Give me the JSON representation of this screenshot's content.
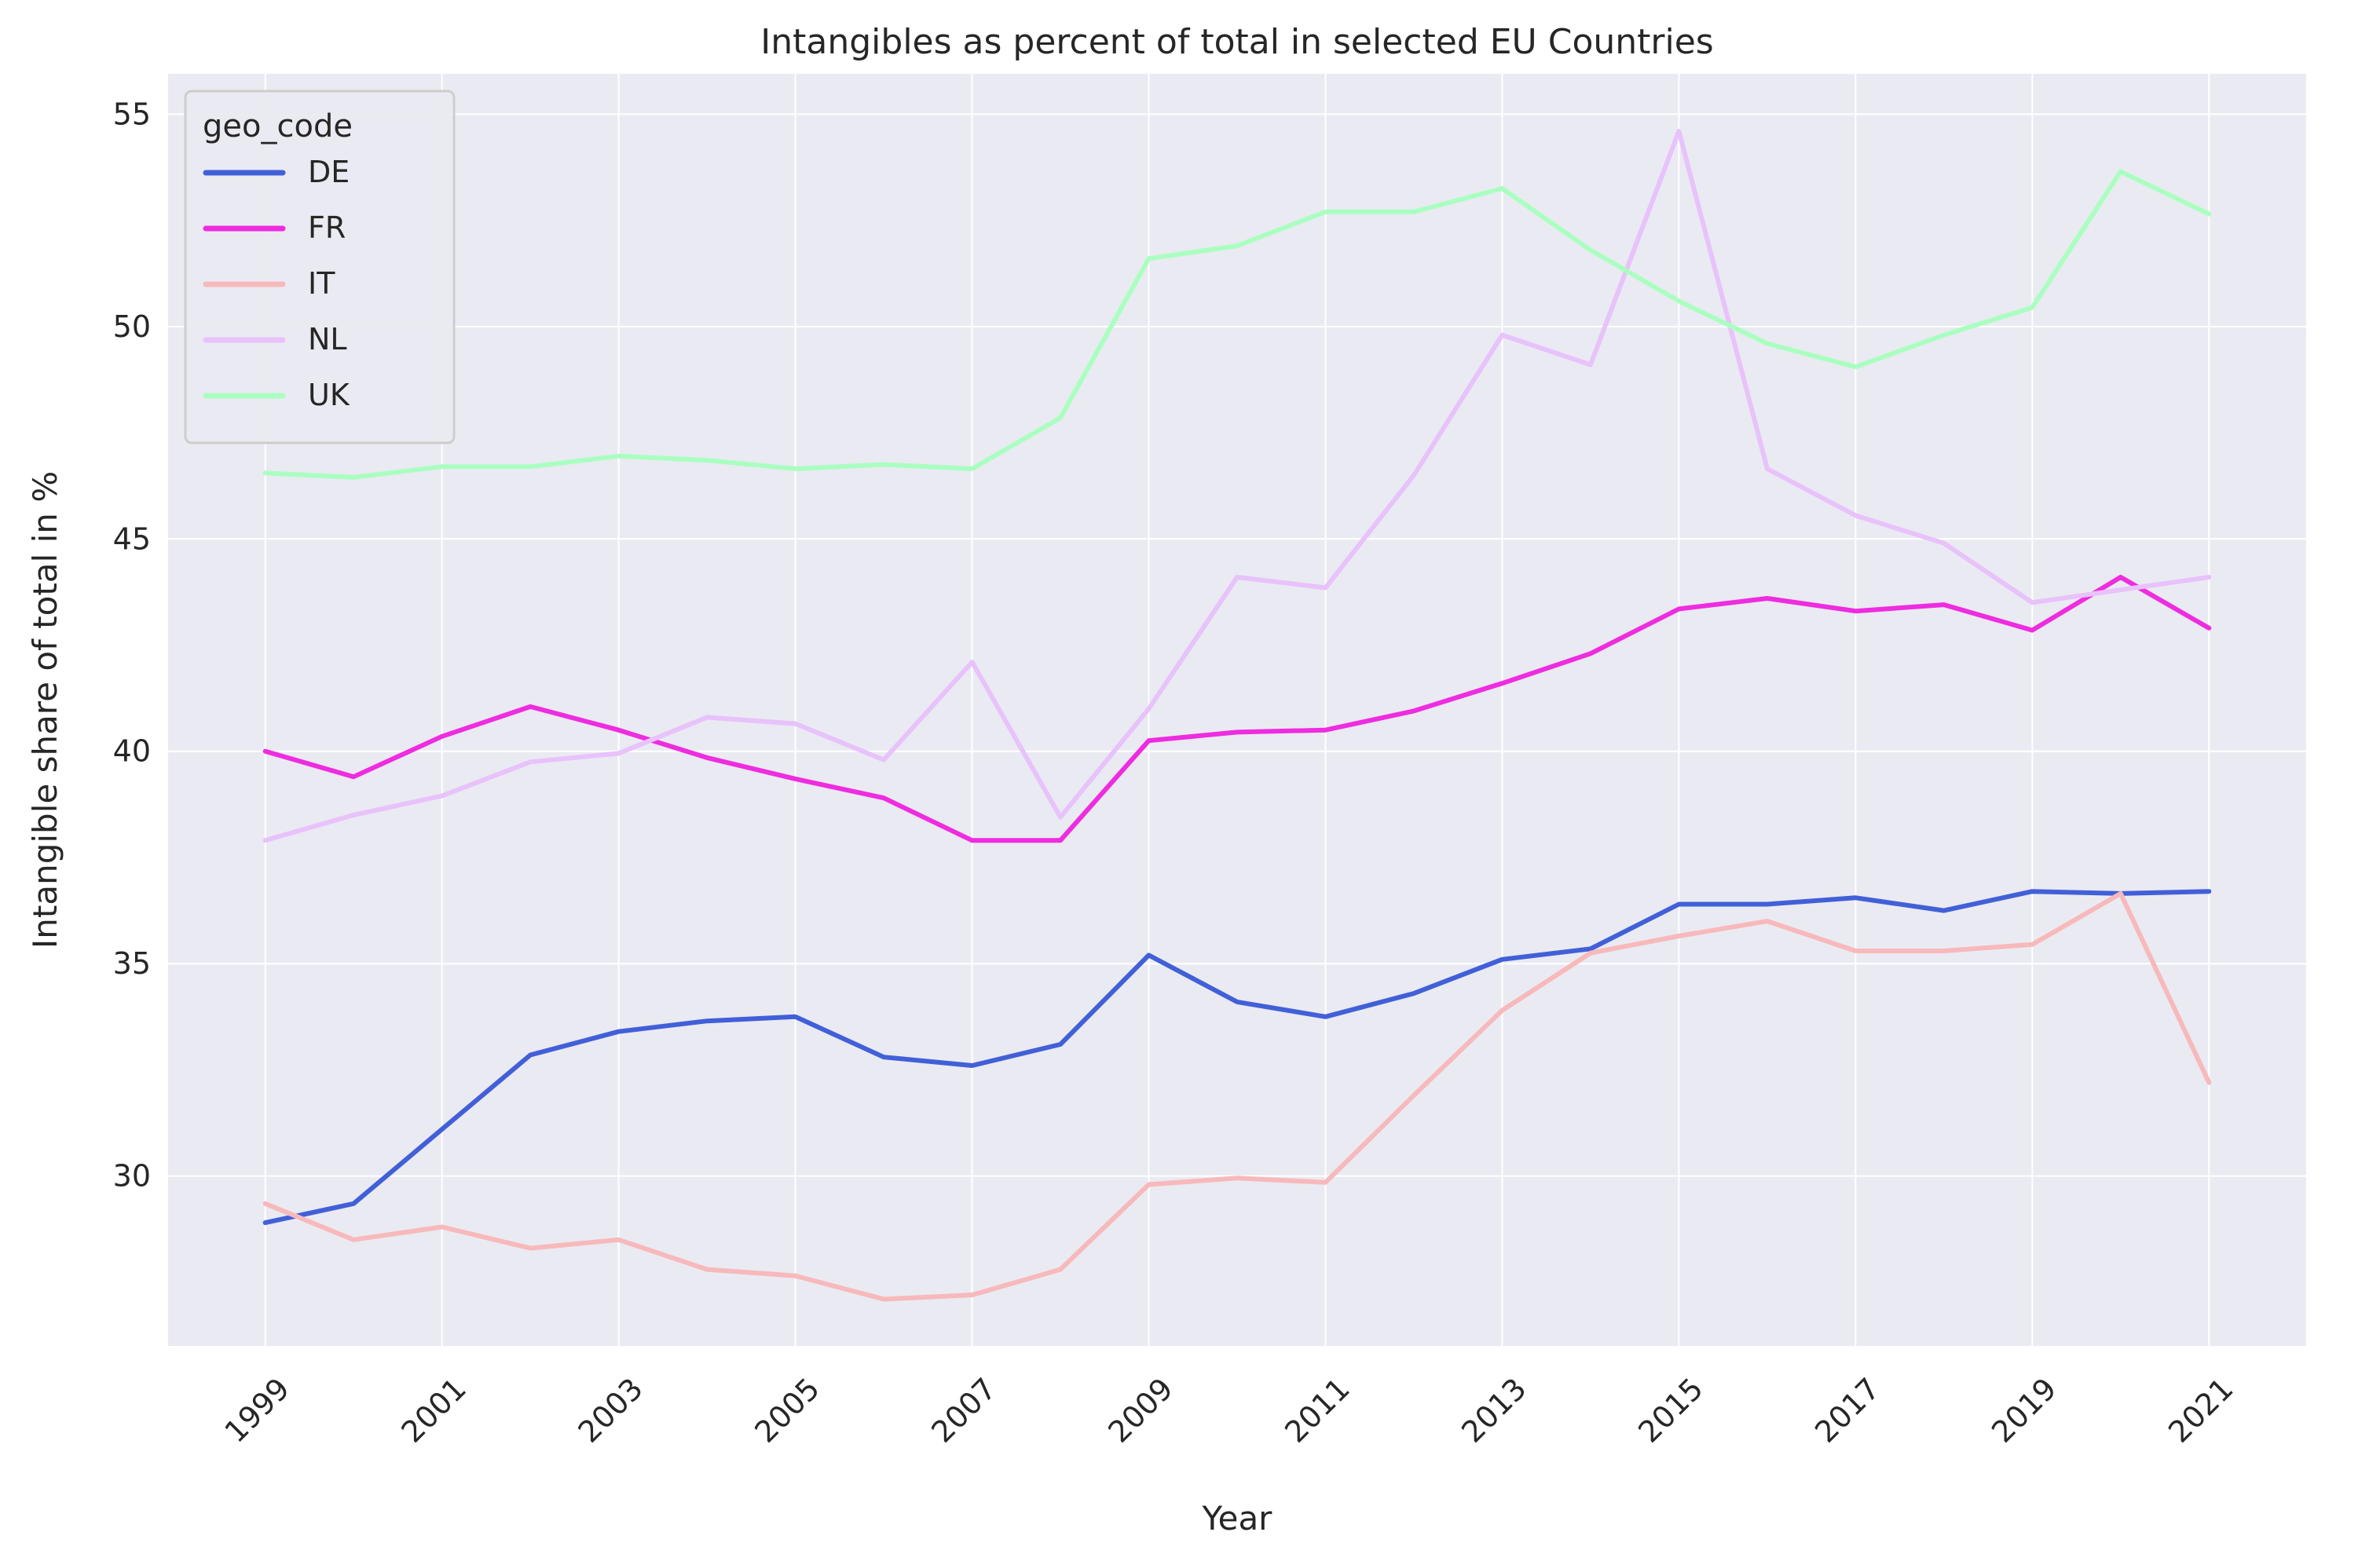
{
  "chart_data": {
    "type": "line",
    "title": "Intangibles as percent of total in selected EU Countries",
    "xlabel": "Year",
    "ylabel": "Intangible share of total in %",
    "xlim": [
      1997.9,
      2022.1
    ],
    "ylim": [
      26.0,
      55.95
    ],
    "xticks": [
      1999,
      2001,
      2003,
      2005,
      2007,
      2009,
      2011,
      2013,
      2015,
      2017,
      2019,
      2021
    ],
    "xtick_labels": [
      "1999",
      "2001",
      "2003",
      "2005",
      "2007",
      "2009",
      "2011",
      "2013",
      "2015",
      "2017",
      "2019",
      "2021"
    ],
    "yticks": [
      30,
      35,
      40,
      45,
      50,
      55
    ],
    "ytick_labels": [
      "30",
      "35",
      "40",
      "45",
      "50",
      "55"
    ],
    "grid": true,
    "legend": {
      "title": "geo_code",
      "placement": "top-left"
    },
    "x": [
      1999,
      2000,
      2001,
      2002,
      2003,
      2004,
      2005,
      2006,
      2007,
      2008,
      2009,
      2010,
      2011,
      2012,
      2013,
      2014,
      2015,
      2016,
      2017,
      2018,
      2019,
      2020,
      2021
    ],
    "series": [
      {
        "name": "DE",
        "color": "#4160d8",
        "values": [
          28.9,
          29.35,
          31.1,
          32.85,
          33.4,
          33.65,
          33.75,
          32.8,
          32.6,
          33.1,
          35.2,
          34.1,
          33.75,
          34.3,
          35.1,
          35.35,
          36.4,
          36.4,
          36.55,
          36.25,
          36.7,
          36.65,
          36.7
        ]
      },
      {
        "name": "FR",
        "color": "#ee2ce0",
        "values": [
          40.0,
          39.4,
          40.35,
          41.05,
          40.5,
          39.85,
          39.35,
          38.9,
          37.9,
          37.9,
          40.25,
          40.45,
          40.5,
          40.95,
          41.6,
          42.3,
          43.35,
          43.6,
          43.3,
          43.45,
          42.85,
          44.1,
          42.9
        ]
      },
      {
        "name": "IT",
        "color": "#f7b9bb",
        "values": [
          29.35,
          28.5,
          28.8,
          28.3,
          28.5,
          27.8,
          27.65,
          27.1,
          27.2,
          27.8,
          29.8,
          29.95,
          29.85,
          31.9,
          33.9,
          35.25,
          35.65,
          36.0,
          35.3,
          35.3,
          35.45,
          36.65,
          32.2
        ]
      },
      {
        "name": "NL",
        "color": "#e8c2fb",
        "values": [
          37.9,
          38.5,
          38.95,
          39.75,
          39.95,
          40.8,
          40.65,
          39.8,
          42.1,
          38.45,
          41.0,
          44.1,
          43.85,
          46.5,
          49.8,
          49.1,
          54.6,
          46.65,
          45.55,
          44.9,
          43.5,
          43.8,
          44.1
        ]
      },
      {
        "name": "UK",
        "color": "#aaffc0",
        "values": [
          46.55,
          46.45,
          46.7,
          46.7,
          46.95,
          46.85,
          46.65,
          46.75,
          46.65,
          47.85,
          51.6,
          51.9,
          52.7,
          52.7,
          53.25,
          51.8,
          50.6,
          49.6,
          49.05,
          49.8,
          50.45,
          53.65,
          52.65
        ]
      }
    ]
  }
}
